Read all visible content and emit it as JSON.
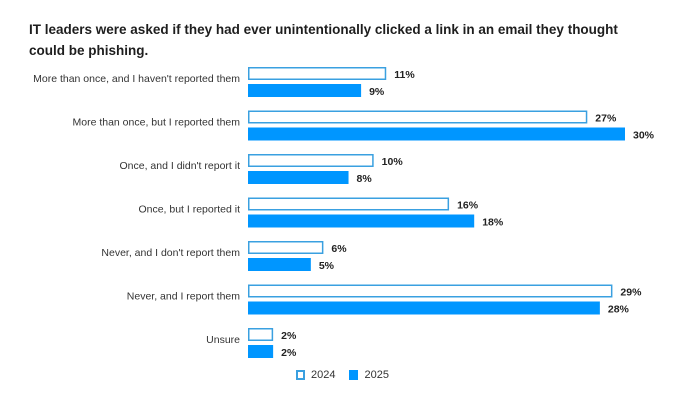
{
  "chart_data": {
    "type": "bar",
    "orientation": "horizontal",
    "title": "IT leaders were asked if they had ever unintentionally clicked a link in an email they thought could be phishing.",
    "xlabel": "",
    "ylabel": "",
    "xlim": [
      0,
      30
    ],
    "grid": false,
    "legend_position": "bottom-center",
    "categories": [
      "More than once, and I haven't reported them",
      "More than once, but I reported them",
      "Once, and I didn't report it",
      "Once, but I reported it",
      "Never, and I don't report them",
      "Never, and I report them",
      "Unsure"
    ],
    "series": [
      {
        "name": "2024",
        "style": "outline",
        "color": "#3aa0e0",
        "values": [
          11,
          27,
          10,
          16,
          6,
          29,
          2
        ]
      },
      {
        "name": "2025",
        "style": "filled",
        "color": "#0096ff",
        "values": [
          9,
          30,
          8,
          18,
          5,
          28,
          2
        ]
      }
    ],
    "value_suffix": "%"
  },
  "legend": {
    "items": [
      "2024",
      "2025"
    ]
  }
}
